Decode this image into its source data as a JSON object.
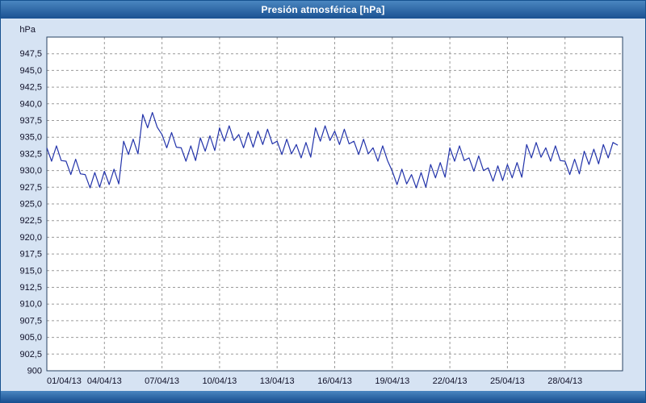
{
  "window": {
    "title": "Presión atmosférica [hPa]"
  },
  "chart_data": {
    "type": "line",
    "title": "Presión atmosférica [hPa]",
    "ylabel": "hPa",
    "xlabel": "",
    "grid": true,
    "legend": "none",
    "ylim": [
      900,
      950
    ],
    "samples_per_day": 4,
    "x_start_label": "01/04/13",
    "x_tick_days": [
      0,
      3,
      6,
      9,
      12,
      15,
      18,
      21,
      24,
      27
    ],
    "x_tick_labels": [
      "01/04/13",
      "04/04/13",
      "07/04/13",
      "10/04/13",
      "13/04/13",
      "16/04/13",
      "19/04/13",
      "22/04/13",
      "25/04/13",
      "28/04/13"
    ],
    "y_tick_values": [
      947.5,
      945,
      942.5,
      940,
      937.5,
      935,
      932.5,
      930,
      927.5,
      925,
      922.5,
      920,
      917.5,
      915,
      912.5,
      910,
      907.5,
      905,
      902.5,
      900
    ],
    "y_tick_labels": [
      "947,5",
      "945,0",
      "942,5",
      "940,0",
      "937,5",
      "935,0",
      "932,5",
      "930,0",
      "927,5",
      "925,0",
      "922,5",
      "920,0",
      "917,5",
      "915,0",
      "912,5",
      "910,0",
      "907,5",
      "905,0",
      "902,5",
      "900"
    ],
    "colors": {
      "line": "#2233aa",
      "grid": "#9a9a9a",
      "border": "#274060",
      "text": "#101028",
      "plot_bg": "#ffffff"
    },
    "series": [
      {
        "name": "Presión atmosférica",
        "unit": "hPa",
        "color": "#2233aa",
        "values": [
          933.4,
          931.4,
          933.7,
          931.5,
          931.4,
          929.4,
          931.7,
          929.5,
          929.4,
          927.4,
          929.7,
          927.5,
          929.9,
          927.9,
          930.2,
          928.0,
          934.4,
          932.4,
          934.7,
          932.5,
          938.4,
          936.4,
          938.7,
          936.5,
          935.4,
          933.4,
          935.7,
          933.5,
          933.4,
          931.4,
          933.7,
          931.5,
          934.9,
          932.9,
          935.2,
          933.0,
          936.4,
          934.4,
          936.7,
          934.5,
          935.4,
          933.4,
          935.7,
          933.5,
          935.9,
          933.9,
          936.2,
          934.0,
          934.4,
          932.4,
          934.7,
          932.5,
          933.9,
          931.9,
          934.2,
          932.0,
          936.4,
          934.4,
          936.7,
          934.5,
          935.9,
          933.9,
          936.2,
          934.0,
          934.4,
          932.4,
          934.7,
          932.5,
          933.4,
          931.4,
          933.7,
          931.5,
          929.9,
          927.9,
          930.2,
          928.0,
          929.4,
          927.4,
          929.7,
          927.5,
          930.9,
          928.9,
          931.2,
          929.0,
          933.4,
          931.4,
          933.7,
          931.5,
          931.9,
          929.9,
          932.2,
          930.0,
          930.4,
          928.4,
          930.7,
          928.5,
          930.9,
          928.9,
          931.2,
          929.0,
          933.9,
          931.9,
          934.2,
          932.0,
          933.4,
          931.4,
          933.7,
          931.5,
          931.4,
          929.4,
          931.7,
          929.5,
          932.9,
          930.9,
          933.2,
          931.0,
          933.9,
          931.9,
          934.2,
          933.8
        ]
      }
    ]
  }
}
